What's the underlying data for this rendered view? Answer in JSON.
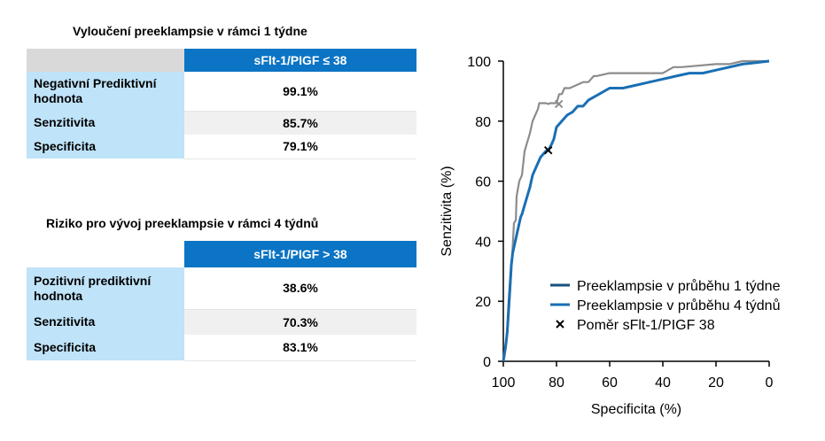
{
  "table1": {
    "title": "Vyloučení preeklampsie v rámci 1 týdne",
    "header": "sFlt-1/PIGF ≤ 38",
    "rows": [
      {
        "label": "Negativní Prediktivní hodnota",
        "value": "99.1%"
      },
      {
        "label": "Senzitivita",
        "value": "85.7%"
      },
      {
        "label": "Specificita",
        "value": "79.1%"
      }
    ]
  },
  "table2": {
    "title": "Riziko pro vývoj preeklampsie v rámci 4 týdnů",
    "header": "sFlt-1/PIGF > 38",
    "rows": [
      {
        "label": "Pozitivní prediktivní hodnota",
        "value": "38.6%"
      },
      {
        "label": "Senzitivita",
        "value": "70.3%"
      },
      {
        "label": "Specificita",
        "value": "83.1%"
      }
    ]
  },
  "chart_data": {
    "type": "line",
    "xlabel": "Specificita (%)",
    "ylabel": "Senzitivita (%)",
    "xlim": [
      100,
      0
    ],
    "ylim": [
      0,
      100
    ],
    "x_reversed": true,
    "xticks": [
      100,
      80,
      60,
      40,
      20,
      0
    ],
    "yticks": [
      0,
      20,
      40,
      60,
      80,
      100
    ],
    "grid": false,
    "legend_position": "bottom-right",
    "colors": {
      "series1": "#8c8c8c",
      "series2": "#1a6fb4",
      "marker": "#000000",
      "legend_line1": "#1a4f7e"
    },
    "series": [
      {
        "name": "Preeklampsie v průběhu 1 týdne",
        "x": [
          100,
          99.5,
          99,
          98,
          97.5,
          97,
          96.5,
          96,
          95.3,
          95,
          94,
          93,
          92.5,
          92,
          91,
          90,
          89,
          88,
          87,
          86.5,
          86,
          85,
          84,
          83,
          82.5,
          80,
          79,
          78,
          77,
          75,
          70,
          68,
          66,
          65,
          60,
          50,
          40,
          38,
          36,
          33,
          20,
          15,
          10,
          8,
          0
        ],
        "y": [
          0,
          2,
          5,
          15,
          22,
          30,
          38,
          46,
          47,
          55,
          60,
          62,
          66,
          70,
          73,
          76,
          80,
          82,
          84,
          86,
          86,
          86,
          86,
          85.7,
          86,
          86,
          89,
          89,
          91,
          91,
          93,
          93,
          95,
          95,
          96,
          96,
          96,
          97,
          98,
          98,
          99,
          99,
          100,
          100,
          100
        ]
      },
      {
        "name": "Preeklampsie v průběhu 4 týdnů",
        "x": [
          100,
          99.5,
          99,
          98.5,
          98,
          97.5,
          97,
          96.5,
          96,
          95,
          94,
          93.5,
          93,
          92,
          91,
          90,
          89.5,
          89,
          88,
          87,
          86,
          85,
          84,
          83.1,
          82,
          81,
          80,
          78,
          76,
          74,
          72,
          70,
          68,
          66,
          64,
          60,
          55,
          50,
          45,
          40,
          35,
          30,
          25,
          20,
          15,
          10,
          5,
          0
        ],
        "y": [
          0,
          3,
          6,
          10,
          18,
          25,
          32,
          36,
          38,
          42,
          46,
          48,
          49,
          52,
          55,
          58,
          60,
          62,
          64,
          66,
          68,
          69,
          70,
          70.3,
          72,
          74,
          78,
          80,
          82,
          83,
          85,
          85,
          87,
          88,
          89,
          91,
          91,
          92,
          93,
          94,
          95,
          96,
          96,
          97,
          98,
          99,
          99.5,
          100
        ]
      }
    ],
    "markers": [
      {
        "name": "Poměr sFlt-1/PIGF 38",
        "x": 83.1,
        "y": 70.3,
        "symbol": "x"
      },
      {
        "name": "",
        "x": 79.1,
        "y": 85.7,
        "symbol": "x",
        "color": "#8c8c8c"
      }
    ]
  }
}
